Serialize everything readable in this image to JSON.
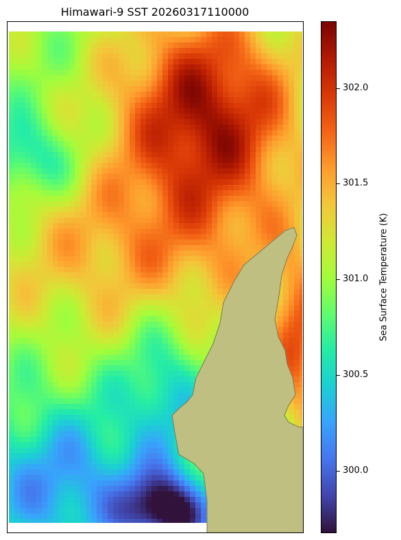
{
  "title": "Himawari-9 SST 20260317110000",
  "colorbar": {
    "label": "Sea Surface Temperature (K)",
    "vmin": 299.65,
    "vmax": 302.35,
    "ticks": [
      "302.0",
      "301.5",
      "301.0",
      "300.5",
      "300.0"
    ],
    "colormap": "turbo",
    "colors": [
      "#30123b",
      "#4145ab",
      "#4675ed",
      "#39a2fc",
      "#1bcfd4",
      "#24eca6",
      "#61fc6c",
      "#a4fc3b",
      "#d1e834",
      "#f3c63a",
      "#fe9b2d",
      "#f36315",
      "#d93806",
      "#b11901",
      "#7a0403"
    ]
  },
  "map": {
    "land_color": "#bfbf82",
    "coast_color": "#7a7a52",
    "no_data_color": "#ffffff"
  }
}
